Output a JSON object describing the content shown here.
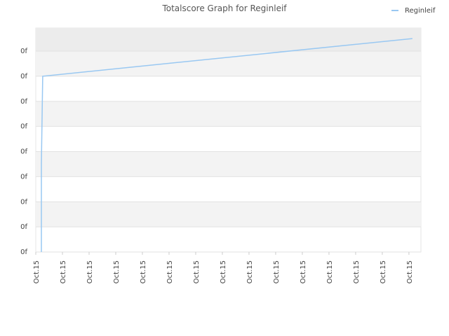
{
  "chart_data": {
    "type": "line",
    "title": "Totalscore Graph for Reginleif",
    "x": [
      0.21,
      0.21,
      0.26,
      14.13
    ],
    "series": [
      {
        "name": "Reginleif",
        "color": "#99c8f2",
        "values": [
          0,
          3.5,
          7.0,
          8.5
        ]
      }
    ],
    "xlim": [
      0,
      14.45
    ],
    "xticks": [
      {
        "value": 0,
        "label": "Oct.15"
      },
      {
        "value": 1,
        "label": "Oct.15"
      },
      {
        "value": 2,
        "label": "Oct.15"
      },
      {
        "value": 3,
        "label": "Oct.15"
      },
      {
        "value": 4,
        "label": "Oct.15"
      },
      {
        "value": 5,
        "label": "Oct.15"
      },
      {
        "value": 6,
        "label": "Oct.15"
      },
      {
        "value": 7,
        "label": "Oct.15"
      },
      {
        "value": 8,
        "label": "Oct.15"
      },
      {
        "value": 9,
        "label": "Oct.15"
      },
      {
        "value": 10,
        "label": "Oct.15"
      },
      {
        "value": 11,
        "label": "Oct.15"
      },
      {
        "value": 12,
        "label": "Oct.15"
      },
      {
        "value": 13,
        "label": "Oct.15"
      },
      {
        "value": 14,
        "label": "Oct.15"
      }
    ],
    "ylim": [
      0,
      8.92
    ],
    "yticks": [
      {
        "value": 0,
        "label": "0f"
      },
      {
        "value": 1,
        "label": "0f"
      },
      {
        "value": 2,
        "label": "0f"
      },
      {
        "value": 3,
        "label": "0f"
      },
      {
        "value": 4,
        "label": "0f"
      },
      {
        "value": 5,
        "label": "0f"
      },
      {
        "value": 6,
        "label": "0f"
      },
      {
        "value": 7,
        "label": "0f"
      },
      {
        "value": 8,
        "label": "0f"
      }
    ],
    "grid": true,
    "legend": "top-right"
  }
}
